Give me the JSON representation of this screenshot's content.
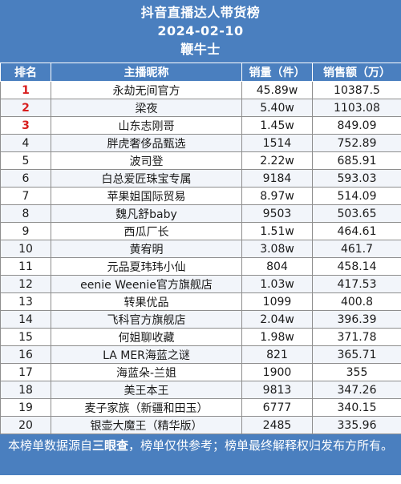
{
  "header": {
    "title": "抖音直播达人带货榜",
    "date": "2024-02-10",
    "subtitle": "鞭牛士"
  },
  "columns": {
    "rank": "排名",
    "name": "主播昵称",
    "volume": "销量（件）",
    "sales": "销售额（万）"
  },
  "rows": [
    {
      "rank": "1",
      "name": "永劫无间官方",
      "volume": "45.89w",
      "sales": "10387.5"
    },
    {
      "rank": "2",
      "name": "梁夜",
      "volume": "5.40w",
      "sales": "1103.08"
    },
    {
      "rank": "3",
      "name": "山东志刚哥",
      "volume": "1.45w",
      "sales": "849.09"
    },
    {
      "rank": "4",
      "name": "胖虎奢侈品甄选",
      "volume": "1514",
      "sales": "752.89"
    },
    {
      "rank": "5",
      "name": "波司登",
      "volume": "2.22w",
      "sales": "685.91"
    },
    {
      "rank": "6",
      "name": "白总爱匠珠宝专属",
      "volume": "9184",
      "sales": "593.03"
    },
    {
      "rank": "7",
      "name": "苹果姐国际贸易",
      "volume": "8.97w",
      "sales": "514.09"
    },
    {
      "rank": "8",
      "name": "魏凡舒baby",
      "volume": "9503",
      "sales": "503.65"
    },
    {
      "rank": "9",
      "name": "西瓜厂长",
      "volume": "1.51w",
      "sales": "464.61"
    },
    {
      "rank": "10",
      "name": "黄宥明",
      "volume": "3.08w",
      "sales": "461.7"
    },
    {
      "rank": "11",
      "name": "元品夏玮玮小仙",
      "volume": "804",
      "sales": "458.14"
    },
    {
      "rank": "12",
      "name": "eenie Weenie官方旗舰店",
      "volume": "1.03w",
      "sales": "417.53"
    },
    {
      "rank": "13",
      "name": "转果优品",
      "volume": "1099",
      "sales": "400.8"
    },
    {
      "rank": "14",
      "name": "飞科官方旗舰店",
      "volume": "2.04w",
      "sales": "396.39"
    },
    {
      "rank": "15",
      "name": "何姐聊收藏",
      "volume": "1.98w",
      "sales": "371.78"
    },
    {
      "rank": "16",
      "name": "LA MER海蓝之谜",
      "volume": "821",
      "sales": "365.71"
    },
    {
      "rank": "17",
      "name": "海蓝朵-兰姐",
      "volume": "1900",
      "sales": "355"
    },
    {
      "rank": "18",
      "name": "美王本王",
      "volume": "9813",
      "sales": "347.26"
    },
    {
      "rank": "19",
      "name": "麦子家族（新疆和田玉）",
      "volume": "6777",
      "sales": "340.15"
    },
    {
      "rank": "20",
      "name": "银壶大魔王（精华版）",
      "volume": "2485",
      "sales": "335.96"
    }
  ],
  "footer": {
    "before": "本榜单数据源自",
    "source": "三眼查",
    "after": "，榜单仅供参考；榜单最终解释权归发布方所有。"
  },
  "colors": {
    "header_bg": "#4a7fbf",
    "top_rank": "#d81e1e"
  }
}
